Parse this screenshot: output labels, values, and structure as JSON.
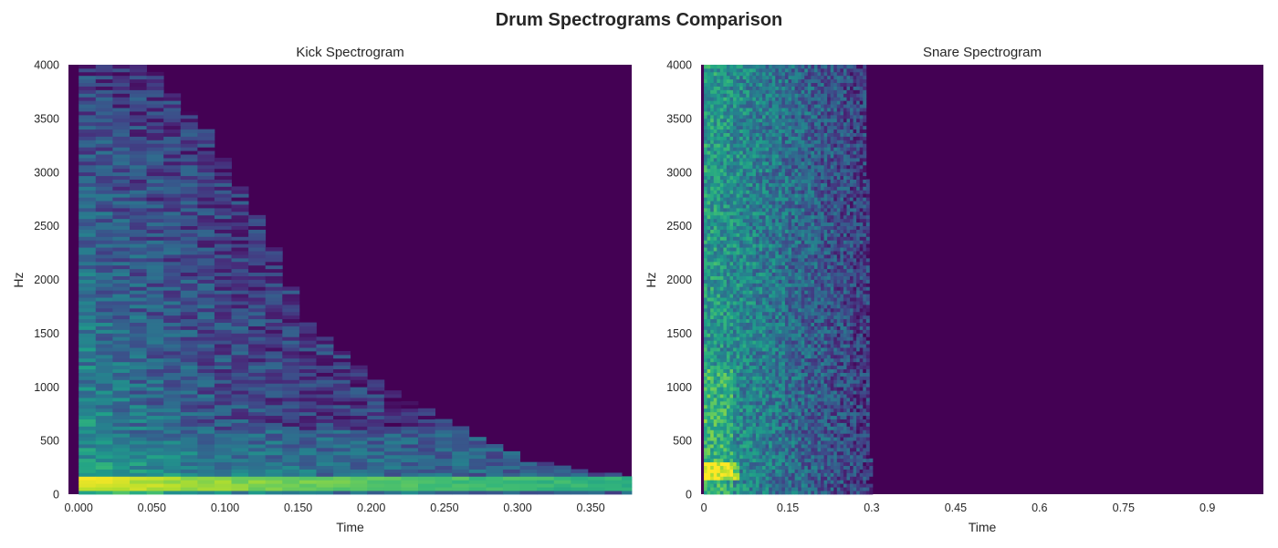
{
  "suptitle": "Drum Spectrograms Comparison",
  "colormap": "viridis",
  "chart_data": [
    {
      "type": "heatmap",
      "title": "Kick Spectrogram",
      "xlabel": "Time",
      "ylabel": "Hz",
      "xlim": [
        -0.007,
        0.378
      ],
      "ylim": [
        0,
        4000
      ],
      "xticks": [
        0.0,
        0.05,
        0.1,
        0.15,
        0.2,
        0.25,
        0.3,
        0.35
      ],
      "xtick_labels": [
        "0.000",
        "0.050",
        "0.100",
        "0.150",
        "0.200",
        "0.250",
        "0.300",
        "0.350"
      ],
      "yticks": [
        0,
        500,
        1000,
        1500,
        2000,
        2500,
        3000,
        3500,
        4000
      ],
      "ytick_labels": [
        "0",
        "500",
        "1000",
        "1500",
        "2000",
        "2500",
        "3000",
        "3500",
        "4000"
      ],
      "grid": false,
      "features": {
        "frame_step_s": 0.0116,
        "low_band_hz": [
          30,
          150
        ],
        "low_band_decay_end_s": 0.378,
        "high_freq_cutoff_profile": [
          [
            0.0,
            4000
          ],
          [
            0.04,
            4000
          ],
          [
            0.08,
            3400
          ],
          [
            0.12,
            2500
          ],
          [
            0.15,
            1600
          ],
          [
            0.2,
            1000
          ],
          [
            0.25,
            650
          ],
          [
            0.3,
            300
          ],
          [
            0.35,
            180
          ],
          [
            0.378,
            150
          ]
        ]
      }
    },
    {
      "type": "heatmap",
      "title": "Snare Spectrogram",
      "xlabel": "Time",
      "ylabel": "Hz",
      "xlim": [
        -0.005,
        1.0
      ],
      "ylim": [
        0,
        4000
      ],
      "xticks": [
        0,
        0.15,
        0.3,
        0.45,
        0.6,
        0.75,
        0.9
      ],
      "xtick_labels": [
        "0",
        "0.15",
        "0.3",
        "0.45",
        "0.6",
        "0.75",
        "0.9"
      ],
      "yticks": [
        0,
        500,
        1000,
        1500,
        2000,
        2500,
        3000,
        3500,
        4000
      ],
      "ytick_labels": [
        "0",
        "500",
        "1000",
        "1500",
        "2000",
        "2500",
        "3000",
        "3500",
        "4000"
      ],
      "grid": false,
      "features": {
        "frame_step_s": 0.0058,
        "energy_end_s": 0.3,
        "bright_band_hz": [
          150,
          300
        ],
        "broadband_noise": true
      }
    }
  ]
}
